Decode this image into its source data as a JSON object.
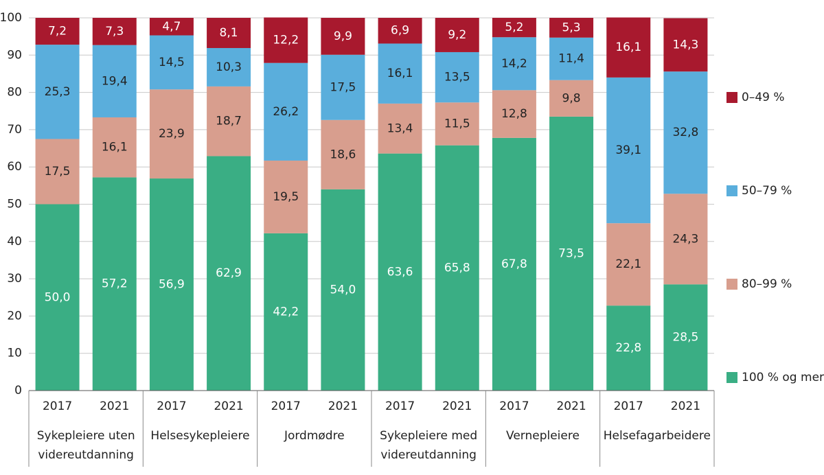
{
  "chart_data": {
    "type": "stacked_bar",
    "categories": [
      "2017",
      "2021",
      "2017",
      "2021",
      "2017",
      "2021",
      "2017",
      "2021",
      "2017",
      "2021",
      "2017",
      "2021"
    ],
    "groups": [
      "Sykepleiere uten videreutdanning",
      "Helsesykepleiere",
      "Jordmødre",
      "Sykepleiere med videreutdanning",
      "Vernepleiere",
      "Helsefagarbeidere"
    ],
    "series": [
      {
        "name": "100 % og mer",
        "color": "#3aae84",
        "label_color": "#ffffff",
        "values": [
          50.0,
          57.2,
          56.9,
          62.9,
          42.2,
          54.0,
          63.6,
          65.8,
          67.8,
          73.5,
          22.8,
          28.5
        ],
        "value_labels": [
          "50,0",
          "57,2",
          "56,9",
          "62,9",
          "42,2",
          "54,0",
          "63,6",
          "65,8",
          "67,8",
          "73,5",
          "22,8",
          "28,5"
        ]
      },
      {
        "name": "80–99 %",
        "color": "#d89e8e",
        "label_color": "#222222",
        "values": [
          17.5,
          16.1,
          23.9,
          18.7,
          19.5,
          18.6,
          13.4,
          11.5,
          12.8,
          9.8,
          22.1,
          24.3
        ],
        "value_labels": [
          "17,5",
          "16,1",
          "23,9",
          "18,7",
          "19,5",
          "18,6",
          "13,4",
          "11,5",
          "12,8",
          "9,8",
          "22,1",
          "24,3"
        ]
      },
      {
        "name": "50–79 %",
        "color": "#5aaedc",
        "label_color": "#222222",
        "values": [
          25.3,
          19.4,
          14.5,
          10.3,
          26.2,
          17.5,
          16.1,
          13.5,
          14.2,
          11.4,
          39.1,
          32.8
        ],
        "value_labels": [
          "25,3",
          "19,4",
          "14,5",
          "10,3",
          "26,2",
          "17,5",
          "16,1",
          "13,5",
          "14,2",
          "11,4",
          "39,1",
          "32,8"
        ]
      },
      {
        "name": "0–49 %",
        "color": "#a8192e",
        "label_color": "#ffffff",
        "values": [
          7.2,
          7.3,
          4.7,
          8.1,
          12.2,
          9.9,
          6.9,
          9.2,
          5.2,
          5.3,
          16.1,
          14.3
        ],
        "value_labels": [
          "7,2",
          "7,3",
          "4,7",
          "8,1",
          "12,2",
          "9,9",
          "6,9",
          "9,2",
          "5,2",
          "5,3",
          "16,1",
          "14,3"
        ]
      }
    ],
    "ylim": [
      0,
      100
    ],
    "yticks": [
      0,
      10,
      20,
      30,
      40,
      50,
      60,
      70,
      80,
      90,
      100
    ],
    "grid": true,
    "legend": "right"
  }
}
